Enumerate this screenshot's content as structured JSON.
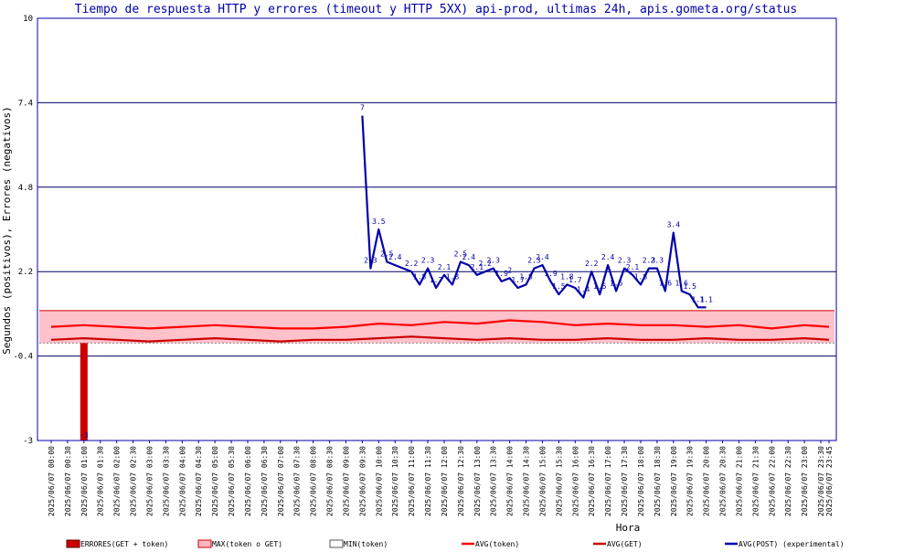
{
  "chart_data": {
    "type": "line",
    "title": "Tiempo de respuesta HTTP y errores (timeout y HTTP 5XX) api-prod, ultimas 24h, apis.gometa.org/status",
    "xlabel": "Hora",
    "ylabel": "Segundos (positivos), Errores (negativos)",
    "ylim": [
      -3,
      10
    ],
    "yticks": [
      "10",
      "7.4",
      "4.8",
      "2.2",
      "-0.4",
      "-3"
    ],
    "grid": true,
    "categories": [
      "2025/06/07 00:00",
      "2025/06/07 00:30",
      "2025/06/07 01:00",
      "2025/06/07 01:30",
      "2025/06/07 02:00",
      "2025/06/07 02:30",
      "2025/06/07 03:00",
      "2025/06/07 03:30",
      "2025/06/07 04:00",
      "2025/06/07 04:30",
      "2025/06/07 05:00",
      "2025/06/07 05:30",
      "2025/06/07 06:00",
      "2025/06/07 06:30",
      "2025/06/07 07:00",
      "2025/06/07 07:30",
      "2025/06/07 08:00",
      "2025/06/07 08:30",
      "2025/06/07 09:00",
      "2025/06/07 09:30",
      "2025/06/07 10:00",
      "2025/06/07 10:30",
      "2025/06/07 11:00",
      "2025/06/07 11:30",
      "2025/06/07 12:00",
      "2025/06/07 12:30",
      "2025/06/07 13:00",
      "2025/06/07 13:30",
      "2025/06/07 14:00",
      "2025/06/07 14:30",
      "2025/06/07 15:00",
      "2025/06/07 15:30",
      "2025/06/07 16:00",
      "2025/06/07 16:30",
      "2025/06/07 17:00",
      "2025/06/07 17:30",
      "2025/06/07 18:00",
      "2025/06/07 18:30",
      "2025/06/07 19:00",
      "2025/06/07 19:30",
      "2025/06/07 20:00",
      "2025/06/07 20:30",
      "2025/06/07 21:00",
      "2025/06/07 21:30",
      "2025/06/07 22:00",
      "2025/06/07 22:30",
      "2025/06/07 23:00",
      "2025/06/07 23:30",
      "2025/06/07 23:45"
    ],
    "x_range": [
      "2025/06/07 00:00",
      "2025/06/07 23:45"
    ],
    "series": [
      {
        "name": "ERRORES(GET + token)",
        "kind": "bar",
        "color": "#cc0000",
        "points": [
          {
            "x": "2025/06/07 01:00",
            "y": -3
          }
        ],
        "labels": [
          "-3"
        ]
      },
      {
        "name": "MAX(token o GET)",
        "kind": "band",
        "color": "#ffb6c1",
        "level": 1.0
      },
      {
        "name": "MIN(token)",
        "kind": "band",
        "color": "#ffffff",
        "level": 0
      },
      {
        "name": "AVG(token)",
        "kind": "line",
        "color": "#ff0000",
        "x": [
          "2025/06/07 00:00",
          "2025/06/07 01:00",
          "2025/06/07 02:00",
          "2025/06/07 03:00",
          "2025/06/07 04:00",
          "2025/06/07 05:00",
          "2025/06/07 06:00",
          "2025/06/07 07:00",
          "2025/06/07 08:00",
          "2025/06/07 09:00",
          "2025/06/07 10:00",
          "2025/06/07 11:00",
          "2025/06/07 12:00",
          "2025/06/07 13:00",
          "2025/06/07 14:00",
          "2025/06/07 15:00",
          "2025/06/07 16:00",
          "2025/06/07 17:00",
          "2025/06/07 18:00",
          "2025/06/07 19:00",
          "2025/06/07 20:00",
          "2025/06/07 21:00",
          "2025/06/07 22:00",
          "2025/06/07 23:00",
          "2025/06/07 23:45"
        ],
        "y": [
          0.5,
          0.55,
          0.5,
          0.45,
          0.5,
          0.55,
          0.5,
          0.45,
          0.45,
          0.5,
          0.6,
          0.55,
          0.65,
          0.6,
          0.7,
          0.65,
          0.55,
          0.6,
          0.55,
          0.55,
          0.5,
          0.55,
          0.45,
          0.55,
          0.5
        ]
      },
      {
        "name": "AVG(GET)",
        "kind": "line",
        "color": "#cc0000",
        "x": [
          "2025/06/07 00:00",
          "2025/06/07 01:00",
          "2025/06/07 02:00",
          "2025/06/07 03:00",
          "2025/06/07 04:00",
          "2025/06/07 05:00",
          "2025/06/07 06:00",
          "2025/06/07 07:00",
          "2025/06/07 08:00",
          "2025/06/07 09:00",
          "2025/06/07 10:00",
          "2025/06/07 11:00",
          "2025/06/07 12:00",
          "2025/06/07 13:00",
          "2025/06/07 14:00",
          "2025/06/07 15:00",
          "2025/06/07 16:00",
          "2025/06/07 17:00",
          "2025/06/07 18:00",
          "2025/06/07 19:00",
          "2025/06/07 20:00",
          "2025/06/07 21:00",
          "2025/06/07 22:00",
          "2025/06/07 23:00",
          "2025/06/07 23:45"
        ],
        "y": [
          0.1,
          0.15,
          0.1,
          0.05,
          0.1,
          0.15,
          0.1,
          0.05,
          0.1,
          0.1,
          0.15,
          0.2,
          0.15,
          0.1,
          0.15,
          0.1,
          0.1,
          0.15,
          0.1,
          0.1,
          0.15,
          0.1,
          0.1,
          0.15,
          0.1
        ]
      },
      {
        "name": "AVG(POST) (experimental)",
        "kind": "line",
        "color": "#0000aa",
        "x": [
          "2025/06/07 09:30",
          "2025/06/07 09:45",
          "2025/06/07 10:00",
          "2025/06/07 10:15",
          "2025/06/07 10:30",
          "2025/06/07 11:00",
          "2025/06/07 11:15",
          "2025/06/07 11:30",
          "2025/06/07 11:45",
          "2025/06/07 12:00",
          "2025/06/07 12:15",
          "2025/06/07 12:30",
          "2025/06/07 12:45",
          "2025/06/07 13:00",
          "2025/06/07 13:15",
          "2025/06/07 13:30",
          "2025/06/07 13:45",
          "2025/06/07 14:00",
          "2025/06/07 14:15",
          "2025/06/07 14:30",
          "2025/06/07 14:45",
          "2025/06/07 15:00",
          "2025/06/07 15:15",
          "2025/06/07 15:30",
          "2025/06/07 15:45",
          "2025/06/07 16:00",
          "2025/06/07 16:15",
          "2025/06/07 16:30",
          "2025/06/07 16:45",
          "2025/06/07 17:00",
          "2025/06/07 17:15",
          "2025/06/07 17:30",
          "2025/06/07 17:45",
          "2025/06/07 18:00",
          "2025/06/07 18:15",
          "2025/06/07 18:30",
          "2025/06/07 18:45",
          "2025/06/07 19:00",
          "2025/06/07 19:15",
          "2025/06/07 19:30",
          "2025/06/07 19:45",
          "2025/06/07 20:00"
        ],
        "y": [
          7,
          2.3,
          3.5,
          2.5,
          2.4,
          2.2,
          1.8,
          2.3,
          1.7,
          2.1,
          1.8,
          2.5,
          2.4,
          2.1,
          2.2,
          2.3,
          1.9,
          2.0,
          1.7,
          1.8,
          2.3,
          2.4,
          1.9,
          1.5,
          1.8,
          1.7,
          1.4,
          2.2,
          1.5,
          2.4,
          1.6,
          2.3,
          2.1,
          1.8,
          2.3,
          2.3,
          1.6,
          3.4,
          1.6,
          1.5,
          1.1,
          1.1
        ]
      }
    ],
    "legend_position": "bottom"
  }
}
